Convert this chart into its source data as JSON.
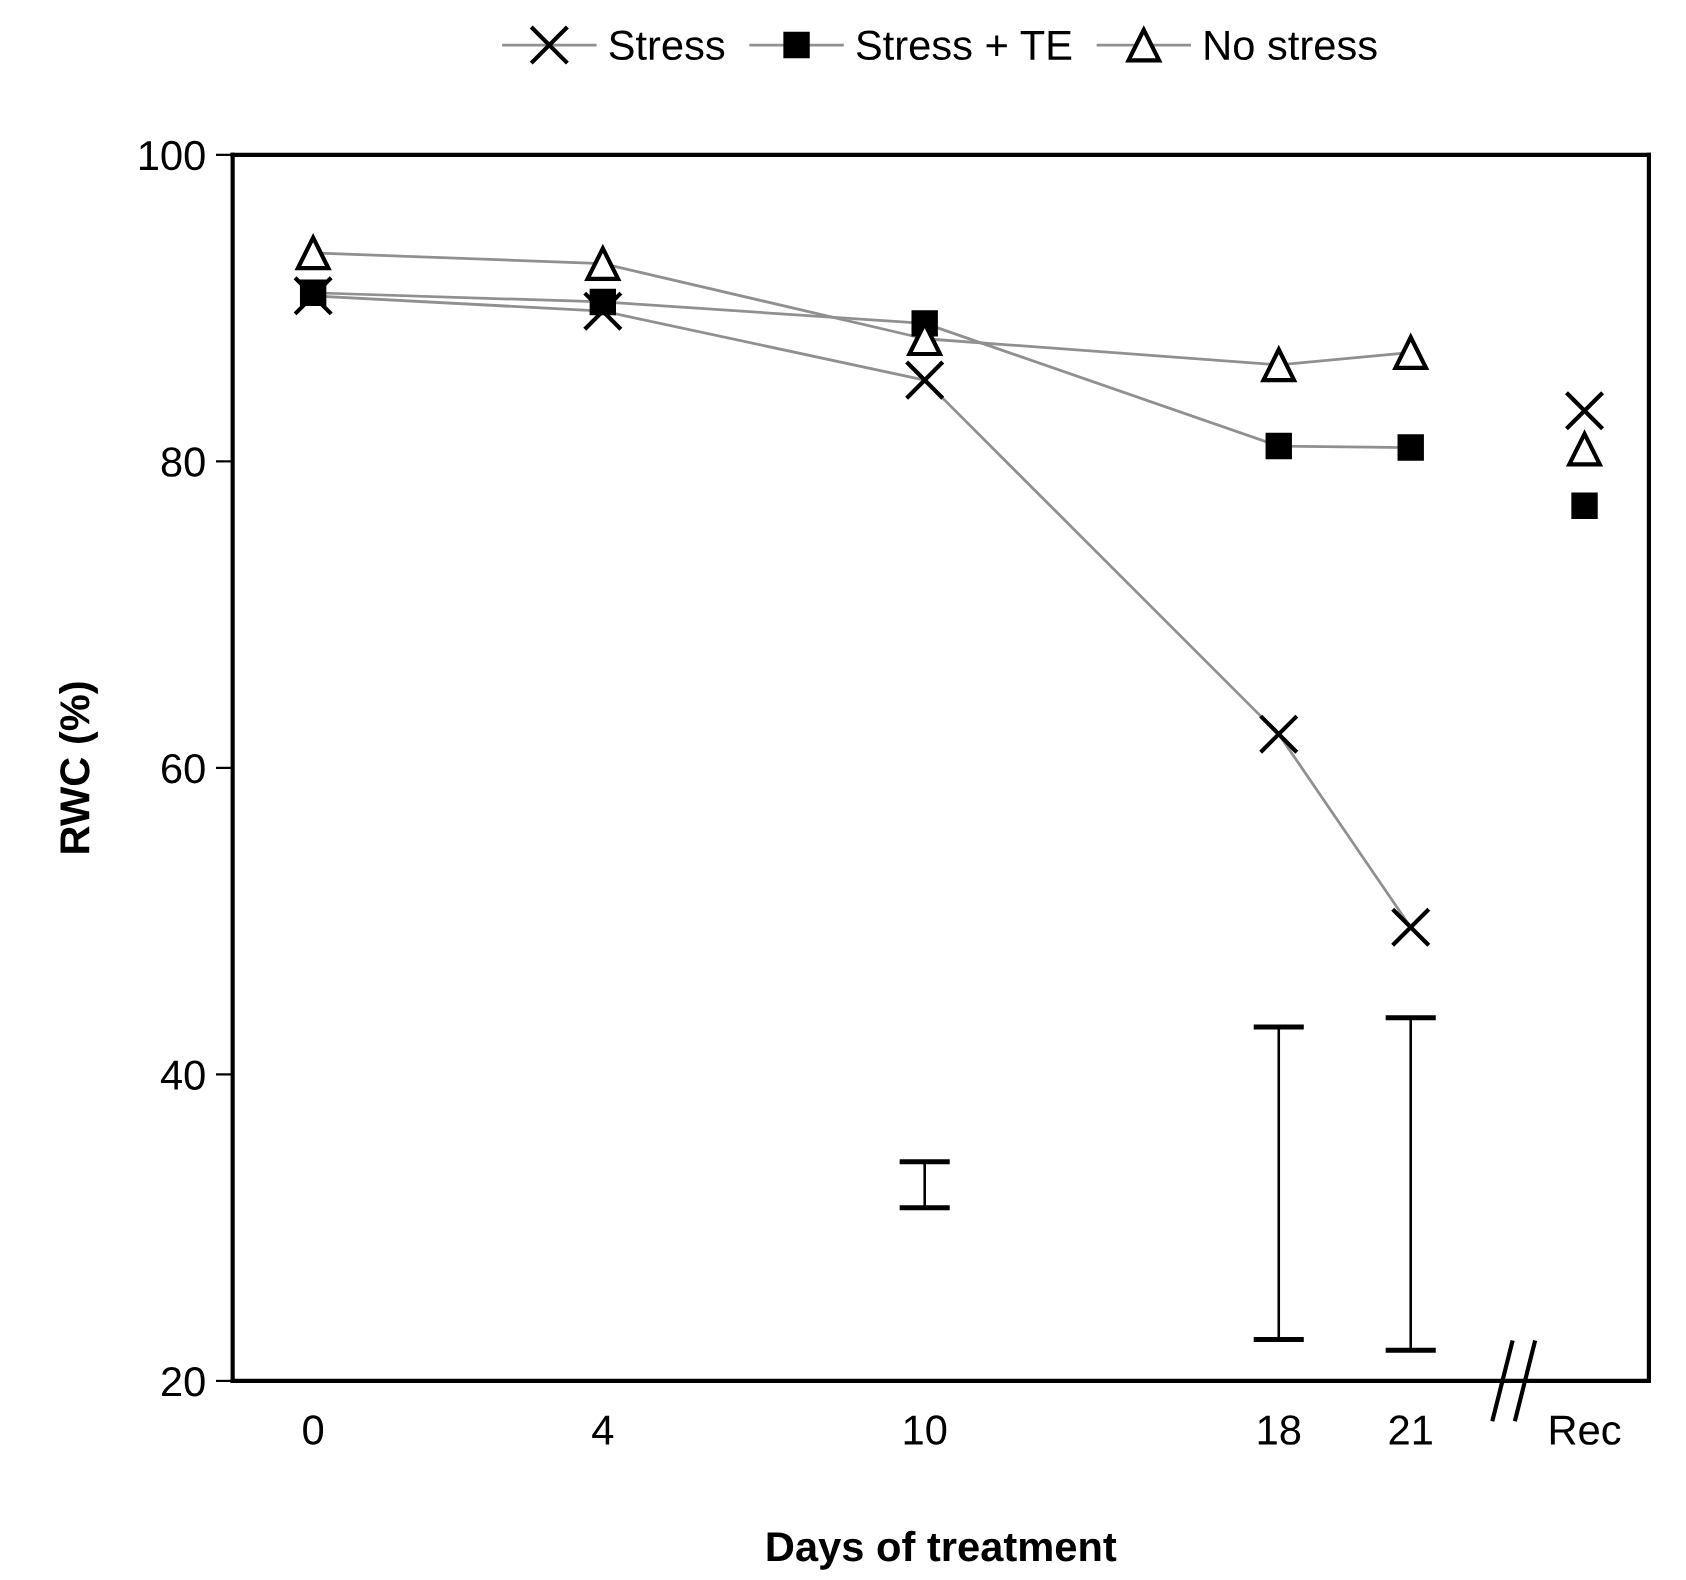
{
  "chart_data": {
    "type": "line",
    "xlabel": "Days of treatment",
    "ylabel": "RWC (%)",
    "categories": [
      "0",
      "4",
      "10",
      "18",
      "21",
      "Rec"
    ],
    "ylim": [
      20,
      100
    ],
    "yticks": [
      20,
      40,
      60,
      80,
      100
    ],
    "grid": false,
    "legend": "top",
    "series": [
      {
        "name": "Stress",
        "marker": "cross",
        "color": "#000000",
        "values": [
          90.8,
          89.8,
          85.3,
          62.2,
          49.6,
          null
        ]
      },
      {
        "name": "Stress + TE",
        "marker": "square",
        "color": "#000000",
        "values": [
          91.0,
          90.4,
          89.0,
          81.0,
          80.9,
          null
        ]
      },
      {
        "name": "No stress",
        "marker": "triangle",
        "color": "#000000",
        "values": [
          93.6,
          92.9,
          88.0,
          86.3,
          87.1,
          null
        ]
      },
      {
        "type": "scatter",
        "marker": "cross",
        "color": "#000000",
        "values": [
          null,
          null,
          null,
          null,
          null,
          83.3
        ]
      },
      {
        "type": "scatter",
        "marker": "square",
        "color": "#000000",
        "values": [
          null,
          null,
          null,
          null,
          null,
          77.1
        ]
      },
      {
        "type": "scatter",
        "marker": "triangle",
        "color": "#000000",
        "values": [
          null,
          null,
          null,
          null,
          null,
          80.8
        ]
      },
      {
        "type": "bar",
        "color": "#000000",
        "base": [
          null,
          null,
          31.3,
          22.7,
          22.0,
          null
        ],
        "values": [
          null,
          null,
          3.0,
          20.4,
          21.7,
          null
        ]
      }
    ]
  }
}
